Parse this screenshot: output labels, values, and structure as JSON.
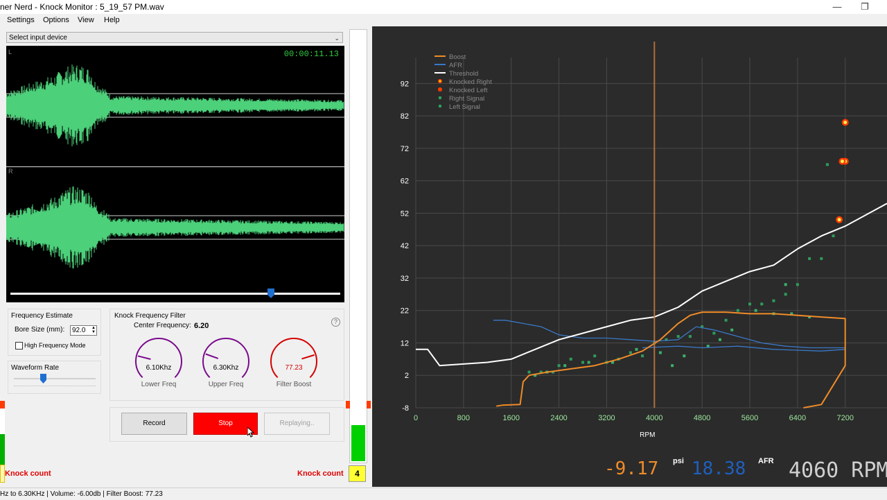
{
  "window": {
    "title": "ner Nerd - Knock Monitor : 5_19_57 PM.wav",
    "minimize_glyph": "—",
    "restore_glyph": "❐"
  },
  "menu": [
    "Settings",
    "Options",
    "View",
    "Help"
  ],
  "device_select": {
    "value": "Select input device"
  },
  "waveform": {
    "left_label": "L",
    "right_label": "R",
    "timer": "00:00:11.13",
    "wave_color": "#4cd07a",
    "playback_position": 0.79
  },
  "frequency_estimate": {
    "title": "Frequency Estimate",
    "bore_label": "Bore Size (mm):",
    "bore_value": "92.0",
    "high_freq_label": "High Frequency Mode",
    "high_freq_checked": false
  },
  "waveform_rate": {
    "label": "Waveform Rate",
    "level": 0.36
  },
  "filter": {
    "title": "Knock Frequency Filter",
    "center_label": "Center Frequency:",
    "center_value": "6.20",
    "help_glyph": "?",
    "knobs": [
      {
        "value": "6.10Khz",
        "caption": "Lower Freq",
        "color": "#7a0a8c",
        "level": 0.22
      },
      {
        "value": "6.30Khz",
        "caption": "Upper Freq",
        "color": "#7a0a8c",
        "level": 0.24
      },
      {
        "value": "77.23",
        "caption": "Filter Boost",
        "color": "#d40000",
        "level": 0.77
      }
    ]
  },
  "buttons": {
    "record": "Record",
    "stop": "Stop",
    "replaying": "Replaying.."
  },
  "knock": {
    "left_label": "Knock count",
    "right_label": "Knock count",
    "right_count": "4",
    "left_meter_level": 0.55,
    "right_meter_level": 0.58
  },
  "chart_data": {
    "type": "line",
    "xlabel": "RPM",
    "x_ticks": [
      "0",
      "800",
      "1600",
      "2400",
      "3200",
      "4000",
      "4800",
      "5600",
      "6400",
      "7200"
    ],
    "y_ticks": [
      "-8",
      "2",
      "12",
      "22",
      "32",
      "42",
      "52",
      "62",
      "72",
      "82",
      "92"
    ],
    "xlim": [
      0,
      7900
    ],
    "ylim": [
      -8,
      100
    ],
    "cursor_rpm": 4000,
    "legend": [
      {
        "name": "Boost",
        "color": "#f08c28",
        "kind": "line"
      },
      {
        "name": "AFR",
        "color": "#3a78c8",
        "kind": "line"
      },
      {
        "name": "Threshold",
        "color": "#ffffff",
        "kind": "line"
      },
      {
        "name": "Knocked Right",
        "color": "#ffdd00",
        "kind": "star"
      },
      {
        "name": "Knocked Left",
        "color": "#ff3b00",
        "kind": "star"
      },
      {
        "name": "Right Signal",
        "color": "#2e9c5c",
        "kind": "dot"
      },
      {
        "name": "Left Signal",
        "color": "#2e9c5c",
        "kind": "dot"
      }
    ],
    "series": {
      "threshold": [
        [
          0,
          10
        ],
        [
          200,
          10
        ],
        [
          400,
          5
        ],
        [
          800,
          5.5
        ],
        [
          1200,
          6
        ],
        [
          1600,
          7
        ],
        [
          2000,
          10
        ],
        [
          2400,
          13
        ],
        [
          2800,
          15
        ],
        [
          3200,
          17
        ],
        [
          3600,
          19
        ],
        [
          4000,
          20
        ],
        [
          4400,
          23
        ],
        [
          4800,
          28
        ],
        [
          5200,
          31
        ],
        [
          5600,
          34
        ],
        [
          6000,
          36
        ],
        [
          6400,
          41
        ],
        [
          6800,
          45
        ],
        [
          7200,
          48
        ],
        [
          7900,
          55
        ]
      ],
      "boost": [
        [
          1350,
          -7.5
        ],
        [
          1450,
          -7.2
        ],
        [
          1750,
          -7
        ],
        [
          1800,
          0
        ],
        [
          1900,
          2
        ],
        [
          2200,
          3
        ],
        [
          2600,
          4
        ],
        [
          3000,
          5
        ],
        [
          3400,
          7
        ],
        [
          3800,
          9.5
        ],
        [
          4100,
          13
        ],
        [
          4400,
          18
        ],
        [
          4600,
          20.5
        ],
        [
          4800,
          21.5
        ],
        [
          5200,
          21.5
        ],
        [
          5600,
          21
        ],
        [
          6000,
          21
        ],
        [
          6400,
          20.5
        ],
        [
          6800,
          20
        ],
        [
          7200,
          19.5
        ],
        [
          7200,
          5
        ],
        [
          6800,
          -7
        ],
        [
          6500,
          -8
        ]
      ],
      "afr": [
        [
          1300,
          19
        ],
        [
          1500,
          19
        ],
        [
          1800,
          18
        ],
        [
          2100,
          17
        ],
        [
          2400,
          14.5
        ],
        [
          2800,
          13.5
        ],
        [
          3200,
          13.5
        ],
        [
          3600,
          13
        ],
        [
          4000,
          12.5
        ],
        [
          4400,
          13
        ],
        [
          4700,
          17
        ],
        [
          5000,
          16
        ],
        [
          5400,
          14
        ],
        [
          5800,
          12
        ],
        [
          6200,
          11
        ],
        [
          6600,
          10.5
        ],
        [
          7000,
          10.5
        ],
        [
          7200,
          10.5
        ]
      ],
      "afr2": [
        [
          3800,
          10.5
        ],
        [
          4400,
          11
        ],
        [
          4800,
          10.5
        ],
        [
          5400,
          11
        ],
        [
          6000,
          10
        ],
        [
          6800,
          9.5
        ],
        [
          7200,
          10
        ]
      ],
      "signal_right": [
        [
          1900,
          3
        ],
        [
          2100,
          3
        ],
        [
          2300,
          3
        ],
        [
          2400,
          5
        ],
        [
          2600,
          7
        ],
        [
          2800,
          6
        ],
        [
          3000,
          8
        ],
        [
          3200,
          6
        ],
        [
          3400,
          7
        ],
        [
          3600,
          9
        ],
        [
          3800,
          8
        ],
        [
          4000,
          12
        ],
        [
          4200,
          13
        ],
        [
          4400,
          14
        ],
        [
          4600,
          14
        ],
        [
          4800,
          17
        ],
        [
          5000,
          15
        ],
        [
          5200,
          19
        ],
        [
          5400,
          22
        ],
        [
          5600,
          24
        ],
        [
          5800,
          24
        ],
        [
          6000,
          25
        ],
        [
          6200,
          27
        ],
        [
          6400,
          30
        ],
        [
          6600,
          38
        ],
        [
          6800,
          38
        ],
        [
          7000,
          45
        ],
        [
          6900,
          67
        ]
      ],
      "signal_left": [
        [
          2000,
          2
        ],
        [
          2200,
          3
        ],
        [
          2500,
          5
        ],
        [
          2900,
          6
        ],
        [
          3300,
          6
        ],
        [
          3700,
          10
        ],
        [
          4100,
          9
        ],
        [
          4300,
          5
        ],
        [
          4500,
          8
        ],
        [
          4900,
          11
        ],
        [
          5100,
          13
        ],
        [
          5300,
          16
        ],
        [
          5700,
          22
        ],
        [
          6000,
          21
        ],
        [
          6300,
          21
        ],
        [
          6600,
          20
        ],
        [
          6200,
          30
        ]
      ],
      "knock_right": [
        [
          7200,
          80
        ],
        [
          7200,
          68
        ],
        [
          7150,
          68
        ],
        [
          7100,
          50
        ]
      ],
      "knock_left": []
    }
  },
  "readout": {
    "boost_value": "-9.17",
    "boost_unit": "psi",
    "afr_value": "18.38",
    "afr_unit": "AFR",
    "rpm_value": "4060 RPM"
  },
  "status": {
    "text": "Hz to 6.30KHz | Volume: -6.00db | Filter Boost: 77.23"
  }
}
